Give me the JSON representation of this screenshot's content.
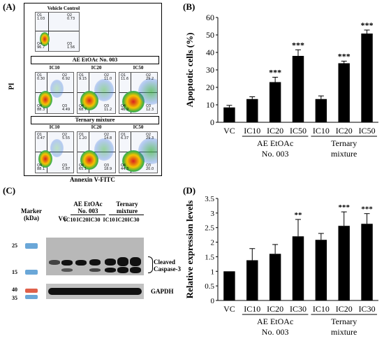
{
  "panels": {
    "A": "(A)",
    "B": "(B)",
    "C": "(C)",
    "D": "(D)"
  },
  "flow": {
    "ylabel": "PI",
    "xlabel": "Annexin V-FITC",
    "vehicle": {
      "title": "Vehicle Control",
      "q1": "Q1\n1.03",
      "q2": "Q2\n0.73",
      "q3": "Q3\n1.56",
      "q4": "Q4\n96.7"
    },
    "group1_label": "AE EtOAc No. 003",
    "group2_label": "Ternary mixture",
    "row1": [
      {
        "title": "IC10",
        "q1": "Q1\n0.30",
        "q2": "Q2\n6.92",
        "q3": "Q3\n4.49",
        "q4": "Q4\n88.3"
      },
      {
        "title": "IC20",
        "q1": "Q1\n9.15",
        "q2": "Q2\n11.0",
        "q3": "Q3\n11.2",
        "q4": "Q4\n68.7"
      },
      {
        "title": "IC50",
        "q1": "Q1\n11.6",
        "q2": "Q2\n29.2",
        "q3": "Q3\n12.3",
        "q4": "Q4\n46.9"
      }
    ],
    "row2": [
      {
        "title": "IC10",
        "q1": "Q1\n0.47",
        "q2": "Q2\n5.55",
        "q3": "Q3\n5.87",
        "q4": "Q4\n88.1"
      },
      {
        "title": "IC20",
        "q1": "Q1\n1.20",
        "q2": "Q2\n14.8",
        "q3": "Q3\n18.9",
        "q4": "Q4\n65.1"
      },
      {
        "title": "IC50",
        "q1": "Q1\n6.37",
        "q2": "Q2\n29.3",
        "q3": "Q3\n20.0",
        "q4": "Q4\n44.3"
      }
    ]
  },
  "blot": {
    "marker_label": "Marker\n(kDa)",
    "vc_label": "VC",
    "group1": "AE EtOAc\nNo. 003",
    "group2": "Ternary\nmixture",
    "lanes": [
      "IC10",
      "IC20",
      "IC30",
      "IC10",
      "IC20",
      "IC30"
    ],
    "marker_values_top": [
      "25",
      "15"
    ],
    "marker_values_bottom": [
      "40",
      "35"
    ],
    "target_label": "Cleaved\nCaspase-3",
    "loading_label": "GAPDH",
    "colors": {
      "marker_blue": "#6aa7d8",
      "marker_red": "#e0604a"
    }
  },
  "chart_data": [
    {
      "type": "bar",
      "panel": "B",
      "ylabel": "Apoptotic cells (%)",
      "ylim": [
        0,
        60
      ],
      "yticks": [
        0,
        10,
        20,
        30,
        40,
        50,
        60
      ],
      "categories": [
        "VC",
        "IC10",
        "IC20",
        "IC50",
        "IC10",
        "IC20",
        "IC50"
      ],
      "values": [
        8.5,
        13.3,
        23.0,
        38.0,
        13.3,
        33.8,
        50.8
      ],
      "errors": [
        1.2,
        1.3,
        2.8,
        3.5,
        1.8,
        1.2,
        2.0
      ],
      "significance": [
        "",
        "",
        "***",
        "***",
        "",
        "***",
        "***"
      ],
      "groups": [
        {
          "label": "AE EtOAc\nNo. 003",
          "from": 1,
          "to": 3
        },
        {
          "label": "Ternary\nmixture",
          "from": 4,
          "to": 6
        }
      ]
    },
    {
      "type": "bar",
      "panel": "D",
      "ylabel": "Relative expression levels",
      "ylim": [
        0,
        3.5
      ],
      "yticks": [
        0,
        0.5,
        1,
        1.5,
        2,
        2.5,
        3,
        3.5
      ],
      "categories": [
        "VC",
        "IC10",
        "IC20",
        "IC30",
        "IC10",
        "IC20",
        "IC30"
      ],
      "values": [
        1.0,
        1.38,
        1.6,
        2.2,
        2.08,
        2.56,
        2.63
      ],
      "errors": [
        0.0,
        0.4,
        0.32,
        0.58,
        0.22,
        0.48,
        0.35
      ],
      "significance": [
        "",
        "",
        "",
        "**",
        "",
        "***",
        "***"
      ],
      "groups": [
        {
          "label": "AE EtOAc\nNo. 003",
          "from": 1,
          "to": 3
        },
        {
          "label": "Ternary\nmixture",
          "from": 4,
          "to": 6
        }
      ]
    }
  ]
}
